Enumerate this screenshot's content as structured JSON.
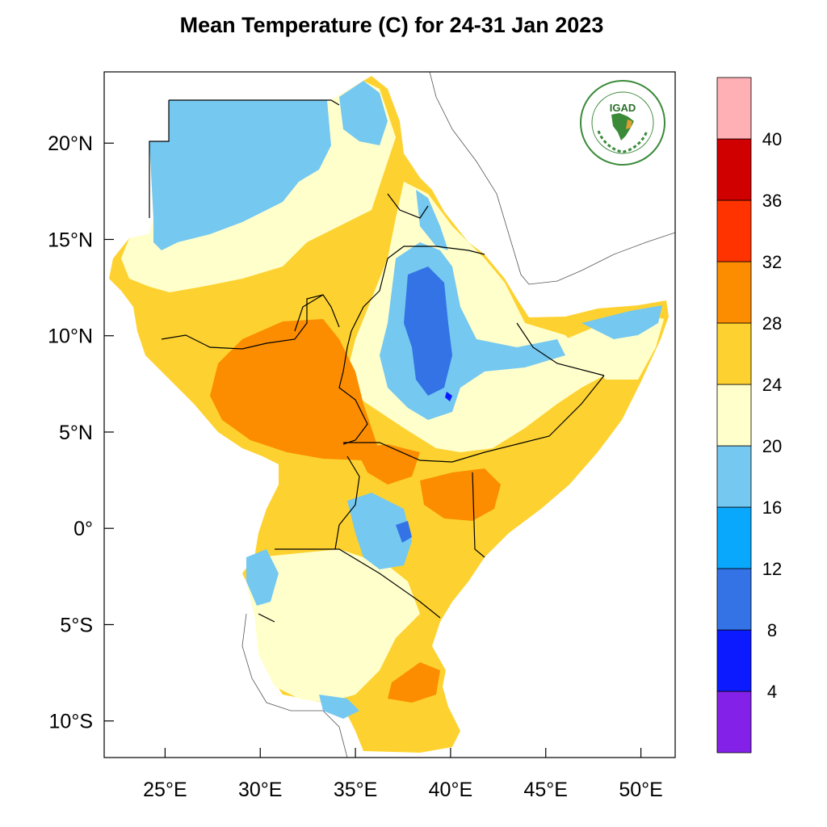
{
  "title": "Mean Temperature (C) for 24-31 Jan 2023",
  "logo": {
    "text": "IGAD",
    "ring_text": "INTERGOVERNMENTAL AUTHORITY ON DEVELOPMENT",
    "ring_text_fr": "AUTORITE INTERGOUVERNEMENTALE POUR LE DEVELOPPEMENT"
  },
  "axes": {
    "x_ticks": [
      {
        "value": 25,
        "label": "25°E"
      },
      {
        "value": 30,
        "label": "30°E"
      },
      {
        "value": 35,
        "label": "35°E"
      },
      {
        "value": 40,
        "label": "40°E"
      },
      {
        "value": 45,
        "label": "45°E"
      },
      {
        "value": 50,
        "label": "50°E"
      }
    ],
    "y_ticks": [
      {
        "value": 20,
        "label": "20°N"
      },
      {
        "value": 15,
        "label": "15°N"
      },
      {
        "value": 10,
        "label": "10°N"
      },
      {
        "value": 5,
        "label": "5°N"
      },
      {
        "value": 0,
        "label": "0°"
      },
      {
        "value": -5,
        "label": "5°S"
      },
      {
        "value": -10,
        "label": "10°S"
      }
    ],
    "lon_range": [
      21.8,
      51.8
    ],
    "lat_range": [
      -11.9,
      23.7
    ]
  },
  "colorbar": {
    "colors": [
      "#8421e8",
      "#0c1aff",
      "#3373e6",
      "#0aa8fc",
      "#75c8f0",
      "#ffffcc",
      "#fdd230",
      "#fc8d00",
      "#ff3300",
      "#d00000",
      "#ffb0b4"
    ],
    "labels": [
      "4",
      "8",
      "12",
      "16",
      "20",
      "24",
      "28",
      "32",
      "36",
      "40"
    ]
  },
  "colors": {
    "ocean": "#ffffff",
    "border": "#000000"
  }
}
